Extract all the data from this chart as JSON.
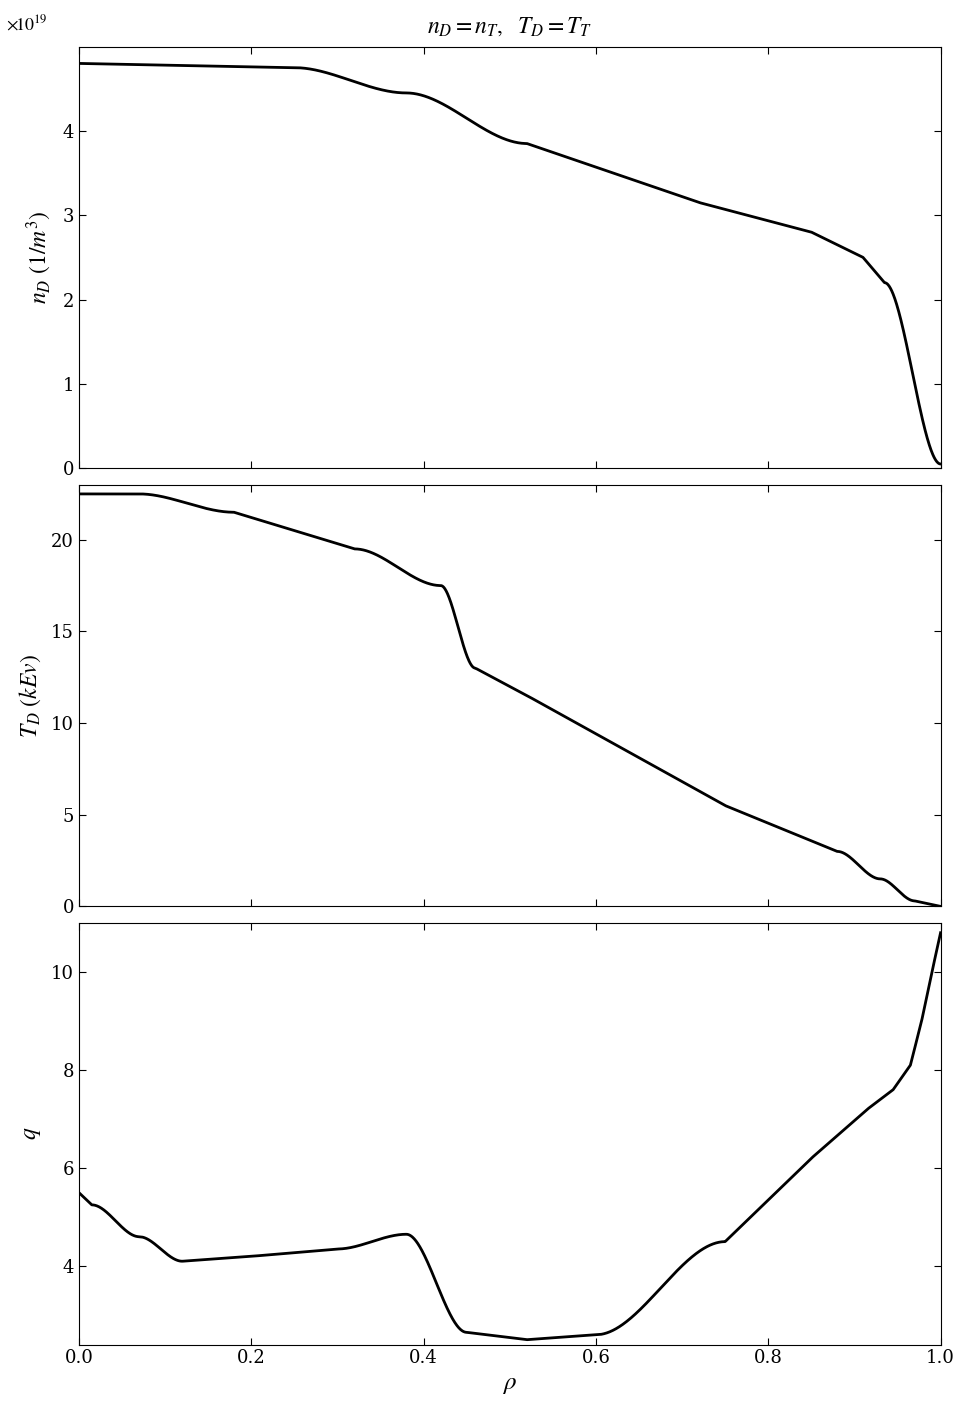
{
  "title": "$n_D = n_T,\\ \\ T_D = T_T$",
  "title_fontsize": 17,
  "xlabel": "$\\rho$",
  "xlabel_fontsize": 18,
  "ylabel1": "$n_D \\ (1/m^3)$",
  "ylabel2": "$T_D \\ (kEv)$",
  "ylabel3": "$q$",
  "ylabel_fontsize": 17,
  "line_color": "black",
  "line_width": 2.0,
  "fig_width": 9.7,
  "fig_height": 14.11,
  "plot1_ylim": [
    0,
    5.0
  ],
  "plot1_yticks": [
    0,
    1,
    2,
    3,
    4
  ],
  "plot2_ylim": [
    0,
    23
  ],
  "plot2_yticks": [
    0,
    5,
    10,
    15,
    20
  ],
  "plot3_ylim": [
    2.4,
    11
  ],
  "plot3_yticks": [
    4,
    6,
    8,
    10
  ],
  "xlim": [
    0,
    1
  ],
  "xticks": [
    0,
    0.2,
    0.4,
    0.6,
    0.8,
    1
  ]
}
